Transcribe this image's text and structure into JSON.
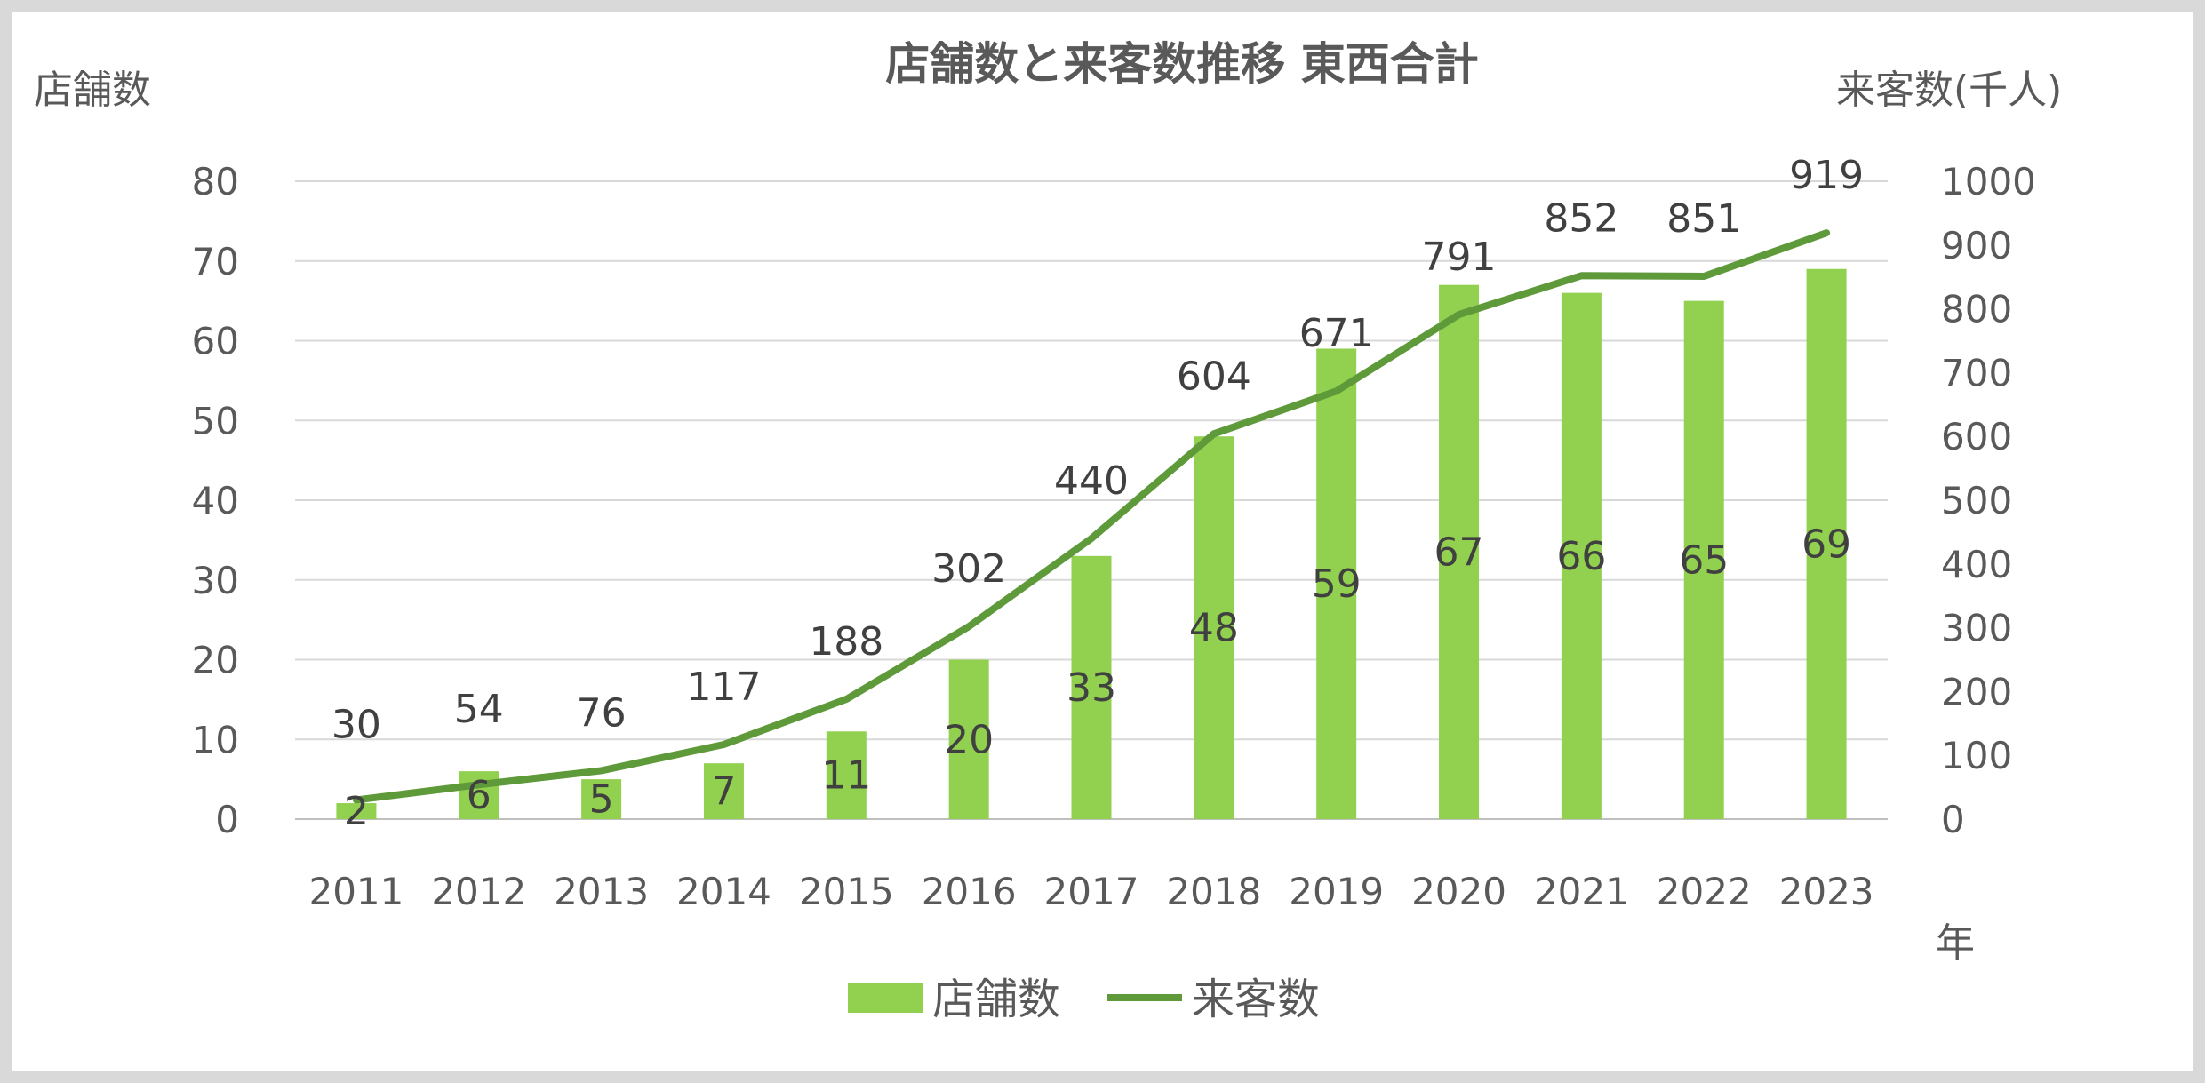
{
  "chart_data": {
    "type": "bar+line",
    "title": "店舗数と来客数推移 東西合計",
    "ylabel_left": "店舗数",
    "ylabel_right": "来客数(千人)",
    "xlabel": "年",
    "categories": [
      "2011",
      "2012",
      "2013",
      "2014",
      "2015",
      "2016",
      "2017",
      "2018",
      "2019",
      "2020",
      "2021",
      "2022",
      "2023"
    ],
    "ylim_left": [
      0,
      80
    ],
    "yticks_left": [
      0,
      10,
      20,
      30,
      40,
      50,
      60,
      70,
      80
    ],
    "ylim_right": [
      0,
      1000
    ],
    "yticks_right": [
      0,
      100,
      200,
      300,
      400,
      500,
      600,
      700,
      800,
      900,
      1000
    ],
    "grid": true,
    "legend": "bottom",
    "series": [
      {
        "name": "店舗数",
        "type": "bar",
        "axis": "left",
        "color": "#92d050",
        "values": [
          2,
          6,
          5,
          7,
          11,
          20,
          33,
          48,
          59,
          67,
          66,
          65,
          69
        ]
      },
      {
        "name": "来客数",
        "type": "line",
        "axis": "right",
        "color": "#5e9a3a",
        "values": [
          30,
          54,
          76,
          117,
          188,
          302,
          440,
          604,
          671,
          791,
          852,
          851,
          919
        ]
      }
    ]
  }
}
